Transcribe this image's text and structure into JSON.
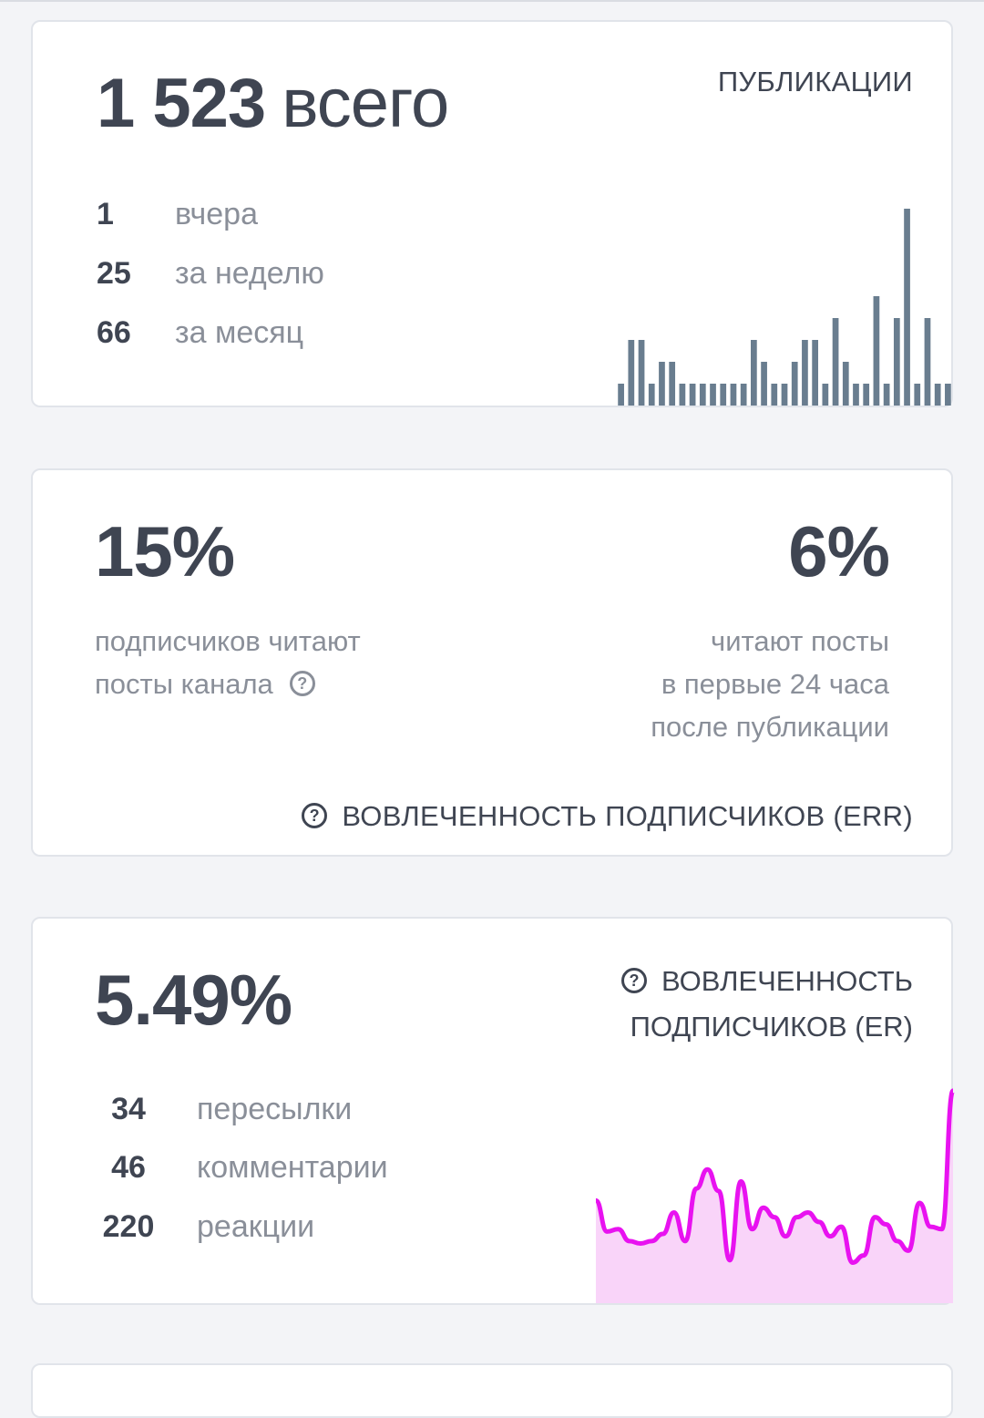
{
  "publications": {
    "total_value": "1 523",
    "total_word": "всего",
    "label": "ПУБЛИКАЦИИ",
    "stats": [
      {
        "value": "1",
        "label": "вчера"
      },
      {
        "value": "25",
        "label": "за неделю"
      },
      {
        "value": "66",
        "label": "за месяц"
      }
    ]
  },
  "err": {
    "left_value": "15%",
    "left_line1": "подписчиков читают",
    "left_line2": "посты канала",
    "right_value": "6%",
    "right_line1": "читают посты",
    "right_line2": "в первые 24 часа",
    "right_line3": "после публикации",
    "footer_label": "ВОВЛЕЧЕННОСТЬ ПОДПИСЧИКОВ (ERR)"
  },
  "er": {
    "value": "5.49%",
    "label_line1": "ВОВЛЕЧЕННОСТЬ",
    "label_line2": "ПОДПИСЧИКОВ (ER)",
    "stats": [
      {
        "value": "34",
        "label": "пересылки"
      },
      {
        "value": "46",
        "label": "комментарии"
      },
      {
        "value": "220",
        "label": "реакции"
      }
    ],
    "line_color": "#e812f0",
    "fill_color": "#f9d4f9"
  },
  "icons": {
    "help": "question-circle-icon"
  },
  "chart_data": [
    {
      "type": "bar",
      "title": "ПУБЛИКАЦИИ",
      "values": [
        1,
        3,
        3,
        1,
        2,
        2,
        1,
        1,
        1,
        1,
        1,
        1,
        1,
        3,
        2,
        1,
        1,
        2,
        3,
        3,
        1,
        4,
        2,
        1,
        1,
        5,
        1,
        4,
        9,
        1,
        4,
        1,
        1
      ],
      "ylim": [
        0,
        9
      ]
    },
    {
      "type": "area",
      "title": "ВОВЛЕЧЕННОСТЬ ПОДПИСЧИКОВ (ER)",
      "values": [
        4.3,
        3.0,
        3.1,
        2.6,
        2.5,
        2.6,
        2.9,
        3.8,
        2.6,
        4.8,
        5.6,
        4.7,
        1.8,
        5.1,
        3.1,
        4.0,
        3.6,
        2.8,
        3.6,
        3.8,
        3.4,
        2.8,
        3.2,
        1.7,
        2.0,
        3.6,
        3.3,
        2.6,
        2.2,
        4.2,
        3.2,
        3.1,
        8.9
      ],
      "ylim": [
        0,
        10
      ]
    }
  ]
}
